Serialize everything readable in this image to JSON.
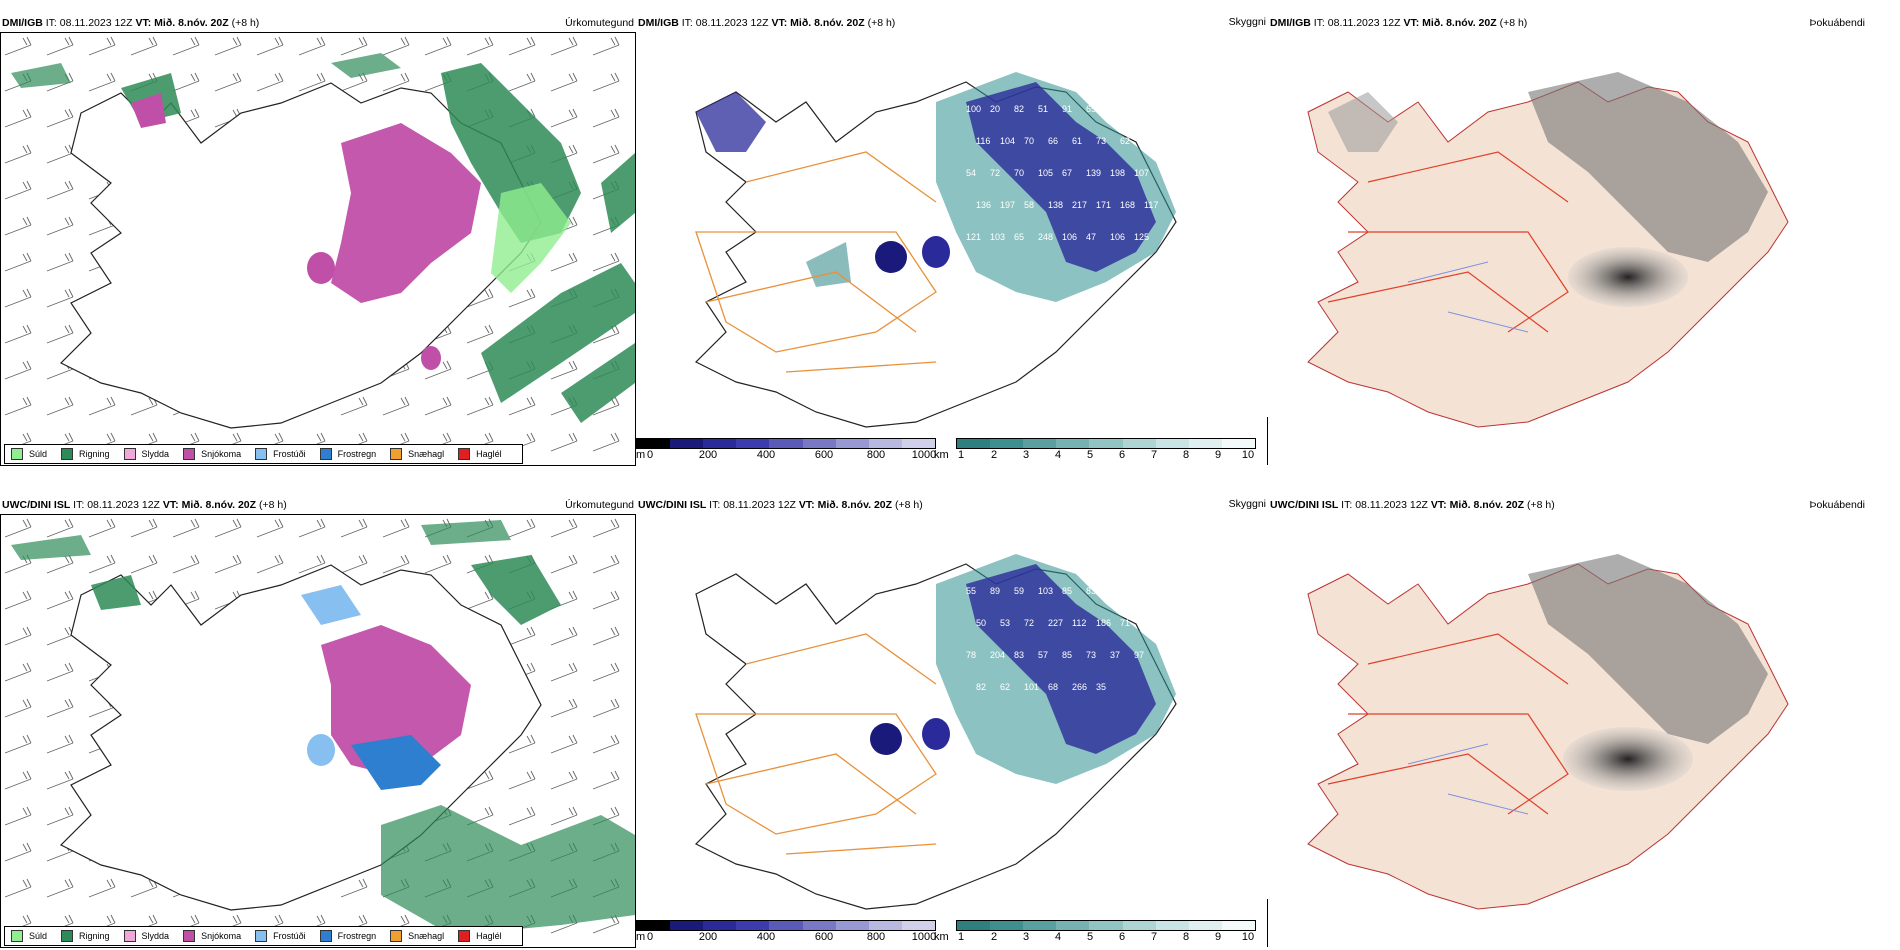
{
  "rows": [
    {
      "model_label": "DMI/IGB",
      "it_label": "IT:",
      "it_value": "08.11.2023 12Z",
      "vt_label": "VT: Mið. 8.nóv. 20Z",
      "offset": "(+8 h)"
    },
    {
      "model_label": "UWC/DINI ISL",
      "it_label": "IT:",
      "it_value": "08.11.2023 12Z",
      "vt_label": "VT: Mið. 8.nóv. 20Z",
      "offset": "(+8 h)"
    }
  ],
  "panels": {
    "precip_type": {
      "name": "Úrkomutegund"
    },
    "visibility": {
      "name": "Skyggni"
    },
    "fog": {
      "name": "Þokuábendi"
    }
  },
  "precip_legend": [
    {
      "label": "Súld",
      "color": "#90ee90"
    },
    {
      "label": "Rigning",
      "color": "#2e8b57"
    },
    {
      "label": "Slydda",
      "color": "#f0a8d8"
    },
    {
      "label": "Snjókoma",
      "color": "#c04fa8"
    },
    {
      "label": "Frostúði",
      "color": "#87bff0"
    },
    {
      "label": "Frostregn",
      "color": "#2f7fd0"
    },
    {
      "label": "Snæhagl",
      "color": "#f0a030"
    },
    {
      "label": "Haglél",
      "color": "#e02020"
    }
  ],
  "visibility_scale": {
    "m_label": "m",
    "m_ticks": [
      "0",
      "200",
      "400",
      "600",
      "800",
      "1000"
    ],
    "km_label": "km",
    "km_ticks": [
      "1",
      "2",
      "3",
      "4",
      "5",
      "6",
      "7",
      "8",
      "9",
      "10"
    ],
    "m_colors": [
      "#000000",
      "#1a1a7a",
      "#2a2a9a",
      "#3c3cae",
      "#5a5ab8",
      "#7878c4",
      "#9898d2",
      "#b8b8e0",
      "#d0d0ea"
    ],
    "km_colors": [
      "#2f7f7f",
      "#3f8f8f",
      "#5aa0a0",
      "#76b2b2",
      "#92c4c4",
      "#aed4d4",
      "#c8e4e4",
      "#e0f0f0",
      "#f4fafa"
    ]
  },
  "fog_key": {
    "high": "0",
    "low": "60"
  },
  "visibility_labels": [
    [
      "100",
      "20",
      "82",
      "51",
      "91",
      "65",
      "59",
      "89",
      "116",
      "104",
      "70",
      "66",
      "61",
      "73",
      "62",
      "57",
      "54",
      "72",
      "70",
      "105",
      "67",
      "139",
      "198",
      "107",
      "136",
      "197",
      "58",
      "138",
      "217",
      "171",
      "168",
      "117",
      "121",
      "103",
      "65",
      "248",
      "106",
      "47",
      "106",
      "125"
    ],
    [
      "55",
      "89",
      "59",
      "103",
      "85",
      "83",
      "48",
      "45",
      "50",
      "53",
      "72",
      "227",
      "112",
      "186",
      "71",
      "89",
      "78",
      "204",
      "83",
      "57",
      "85",
      "73",
      "37",
      "97",
      "82",
      "62",
      "101",
      "68",
      "266",
      "35"
    ]
  ]
}
